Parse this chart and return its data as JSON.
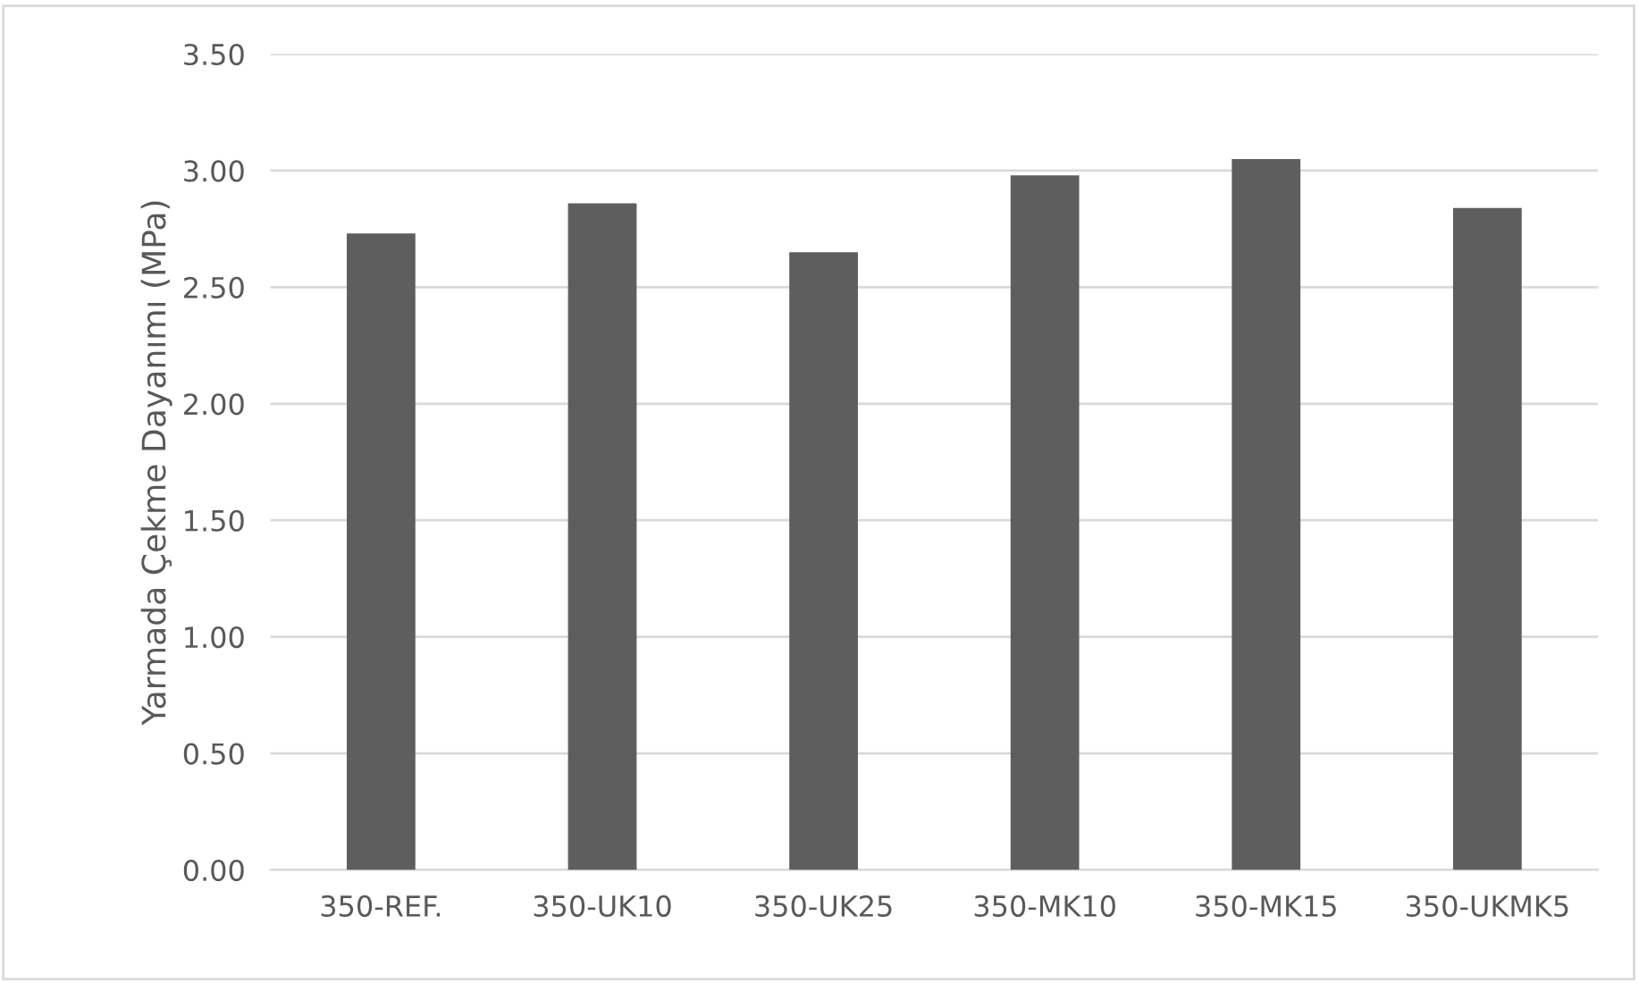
{
  "chart_data": {
    "type": "bar",
    "ylabel": "Yarmada Çekme Dayanımı (MPa)",
    "categories": [
      "350-REF.",
      "350-UK10",
      "350-UK25",
      "350-MK10",
      "350-MK15",
      "350-UKMK5"
    ],
    "values": [
      2.73,
      2.86,
      2.65,
      2.98,
      3.05,
      2.84
    ],
    "color": "#5e5e5e",
    "ylim": [
      0,
      3.5
    ],
    "yticks": [
      {
        "value": 0,
        "label": "0.00"
      },
      {
        "value": 0.5,
        "label": "0.50"
      },
      {
        "value": 1,
        "label": "1.00"
      },
      {
        "value": 1.5,
        "label": "1.50"
      },
      {
        "value": 2,
        "label": "2.00"
      },
      {
        "value": 2.5,
        "label": "2.50"
      },
      {
        "value": 3,
        "label": "3.00"
      },
      {
        "value": 3.5,
        "label": "3.50"
      }
    ],
    "grid": "y"
  }
}
